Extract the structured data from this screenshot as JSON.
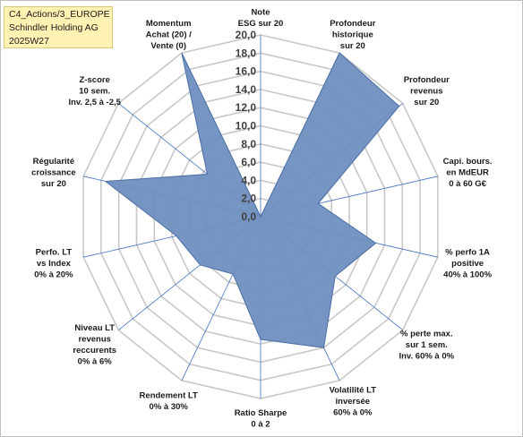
{
  "header": {
    "lines": [
      "C4_Actions/3_EUROPE",
      "Schindler Holding AG",
      "2025W27"
    ]
  },
  "colors": {
    "fill": "#6f8fbf",
    "stroke": "#4a6fa5",
    "grid": "#c8c8c8",
    "spoke": "#4472c4"
  },
  "chart_data": {
    "type": "radar",
    "rmin": 0,
    "rmax": 20,
    "tick_step": 2,
    "ticks": [
      "0,0",
      "2,0",
      "4,0",
      "6,0",
      "8,0",
      "10,0",
      "12,0",
      "14,0",
      "16,0",
      "18,0",
      "20,0"
    ],
    "grid": true,
    "axes": [
      {
        "label": [
          "Note",
          "ESG sur 20"
        ],
        "value": 0
      },
      {
        "label": [
          "Profondeur",
          "historique",
          "sur 20"
        ],
        "value": 20
      },
      {
        "label": [
          "Profondeur",
          "revenus",
          "sur 20"
        ],
        "value": 19.5
      },
      {
        "label": [
          "Capi. bours.",
          "en MdEUR",
          "0 à 60 G€"
        ],
        "value": 6.5
      },
      {
        "label": [
          "% perfo 1A",
          "positive",
          "40% à 100%"
        ],
        "value": 13
      },
      {
        "label": [
          "% perte max.",
          "sur 1 sem.",
          "Inv. 60% à 0%"
        ],
        "value": 10.5
      },
      {
        "label": [
          "Volatilité LT",
          "inversée",
          "60% à 0%"
        ],
        "value": 16
      },
      {
        "label": [
          "Ratio Sharpe",
          "0 à 2"
        ],
        "value": 13.5
      },
      {
        "label": [
          "Rendement LT",
          "0% à 30%"
        ],
        "value": 7
      },
      {
        "label": [
          "Niveau LT",
          "revenus",
          "reccurents",
          "0% à 6%"
        ],
        "value": 8.5
      },
      {
        "label": [
          "Perfo. LT",
          "vs Index",
          "0% à 20%"
        ],
        "value": 9.5
      },
      {
        "label": [
          "Régularité",
          "croissance",
          "sur 20"
        ],
        "value": 17.5
      },
      {
        "label": [
          "Z-score",
          "10 sem.",
          "Inv. 2,5 à -2,5"
        ],
        "value": 7.5
      },
      {
        "label": [
          "Momentum",
          "Achat (20) /",
          "Vente (0)"
        ],
        "value": 20
      }
    ]
  }
}
